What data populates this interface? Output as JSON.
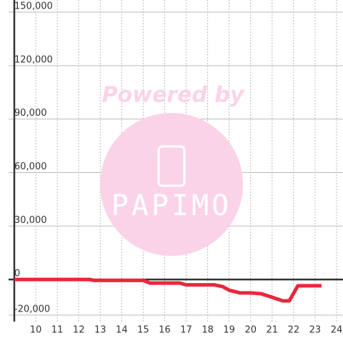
{
  "chart_data": {
    "type": "line",
    "watermark": {
      "title": "Powered by",
      "brand": "PAPIMO"
    },
    "x": [
      9,
      12.5,
      12.7,
      15,
      15.3,
      16.7,
      17,
      18.3,
      18.7,
      19,
      19.5,
      20,
      20.5,
      21,
      21.5,
      21.8,
      22.2,
      23.3
    ],
    "series": [
      {
        "color": "#e8283c",
        "values": [
          0,
          0,
          -500,
          -500,
          -2000,
          -2000,
          -3000,
          -3000,
          -4000,
          -6000,
          -7500,
          -7500,
          -8000,
          -10000,
          -12000,
          -12000,
          -3500,
          -3500
        ]
      }
    ],
    "xlim": [
      9,
      24.3
    ],
    "xticks": [
      10,
      11,
      12,
      13,
      14,
      15,
      16,
      17,
      18,
      19,
      20,
      21,
      22,
      23,
      24
    ],
    "ylim": [
      -20000,
      150000
    ],
    "yticks": [
      {
        "value": -20000,
        "label": "-20,000"
      },
      0,
      {
        "value": 30000,
        "label": "30,000"
      },
      {
        "value": 60000,
        "label": "60,000"
      },
      {
        "value": 90000,
        "label": "90,000"
      },
      {
        "value": 120000,
        "label": "120,000"
      },
      {
        "value": 150000,
        "label": "150,000"
      }
    ],
    "grid": true
  }
}
